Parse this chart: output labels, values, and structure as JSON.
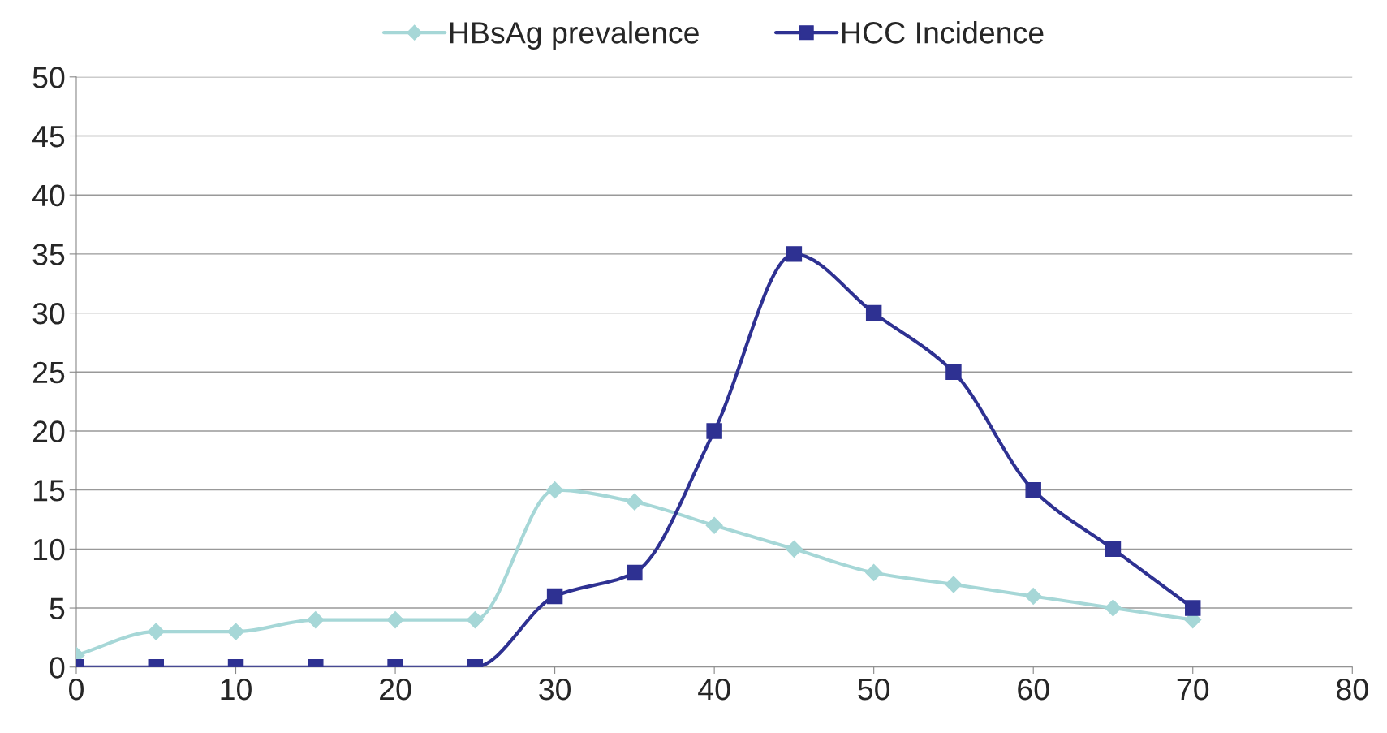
{
  "chart_data": {
    "type": "line",
    "x": [
      0,
      5,
      10,
      15,
      20,
      25,
      30,
      35,
      40,
      45,
      50,
      55,
      60,
      65,
      70
    ],
    "series": [
      {
        "name": "HBsAg prevalence",
        "color": "#a6d7d7",
        "marker": "diamond",
        "values": [
          1,
          3,
          3,
          4,
          4,
          4,
          15,
          14,
          12,
          10,
          8,
          7,
          6,
          5,
          4
        ]
      },
      {
        "name": "HCC Incidence",
        "color": "#2e3192",
        "marker": "square",
        "values": [
          0,
          0,
          0,
          0,
          0,
          0,
          6,
          8,
          20,
          35,
          30,
          25,
          15,
          10,
          5
        ]
      }
    ],
    "xlim": [
      0,
      80
    ],
    "xticks": [
      0,
      10,
      20,
      30,
      40,
      50,
      60,
      70,
      80
    ],
    "ylim": [
      0,
      50
    ],
    "yticks": [
      0,
      5,
      10,
      15,
      20,
      25,
      30,
      35,
      40,
      45,
      50
    ],
    "grid": "y",
    "legend": "top",
    "line_style": "solid"
  }
}
